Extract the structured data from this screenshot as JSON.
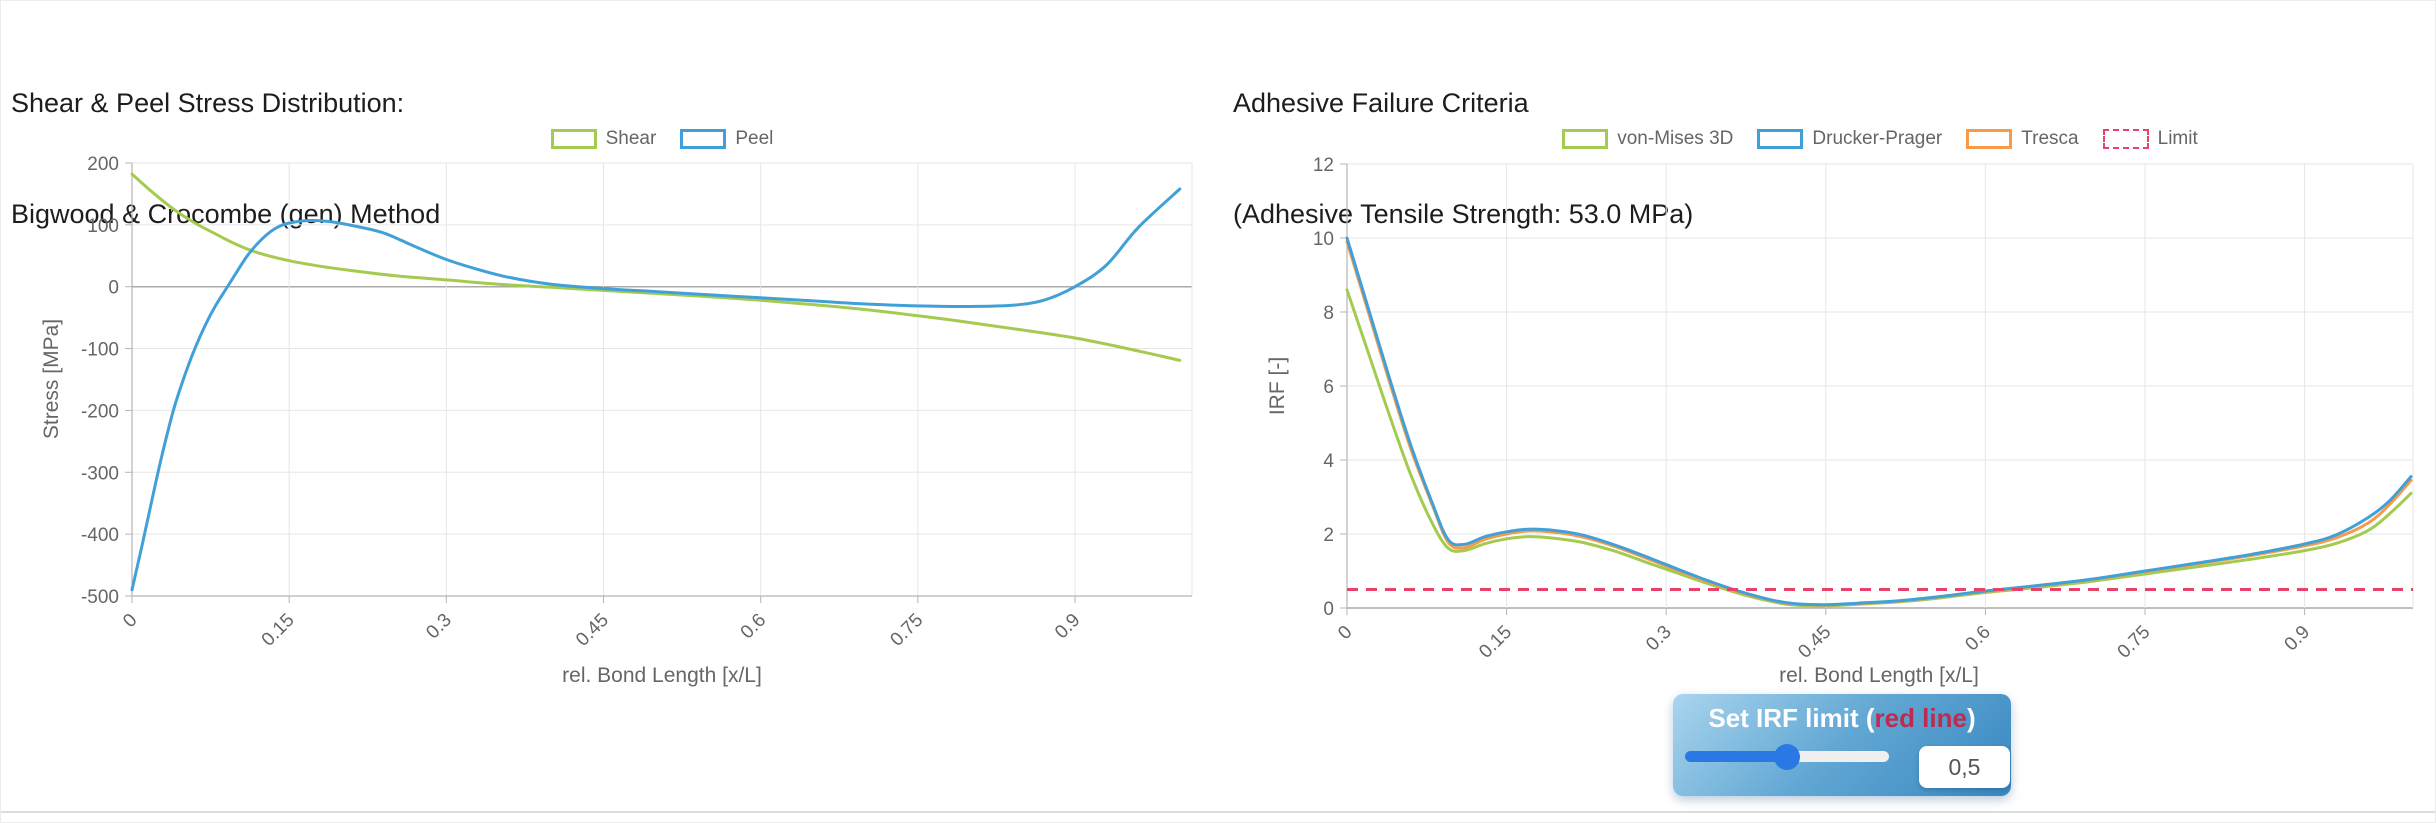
{
  "chart_data": [
    {
      "type": "line",
      "title_lines": [
        "Shear & Peel Stress Distribution:",
        "Bigwood & Crocombe (gen) Method"
      ],
      "xlabel": "rel. Bond Length [x/L]",
      "ylabel": "Stress [MPa]",
      "xlim": [
        0,
        1.01
      ],
      "ylim": [
        -500,
        200
      ],
      "xticks": [
        0,
        0.15,
        0.3,
        0.45,
        0.6,
        0.75,
        0.9
      ],
      "yticks": [
        200,
        100,
        0,
        -100,
        -200,
        -300,
        -400,
        -500
      ],
      "grid": true,
      "legend_position": "top",
      "series": [
        {
          "name": "Shear",
          "color": "#a4cb50",
          "x": [
            0,
            0.02,
            0.04,
            0.06,
            0.08,
            0.1,
            0.12,
            0.15,
            0.18,
            0.21,
            0.25,
            0.3,
            0.35,
            0.4,
            0.45,
            0.5,
            0.55,
            0.6,
            0.65,
            0.7,
            0.75,
            0.8,
            0.85,
            0.9,
            0.95,
            1.0
          ],
          "y": [
            182,
            152,
            125,
            103,
            85,
            68,
            55,
            42,
            33,
            26,
            18,
            11,
            4,
            -1,
            -6,
            -11,
            -16,
            -22,
            -29,
            -37,
            -47,
            -58,
            -70,
            -83,
            -100,
            -119
          ]
        },
        {
          "name": "Peel",
          "color": "#41a0d8",
          "x": [
            0,
            0.01,
            0.02,
            0.03,
            0.04,
            0.05,
            0.06,
            0.07,
            0.08,
            0.09,
            0.1,
            0.11,
            0.12,
            0.13,
            0.14,
            0.15,
            0.17,
            0.19,
            0.21,
            0.24,
            0.27,
            0.3,
            0.33,
            0.36,
            0.4,
            0.45,
            0.5,
            0.55,
            0.6,
            0.65,
            0.7,
            0.75,
            0.8,
            0.84,
            0.87,
            0.9,
            0.93,
            0.96,
            1.0
          ],
          "y": [
            -490,
            -415,
            -337,
            -263,
            -197,
            -145,
            -100,
            -62,
            -30,
            -3,
            24,
            50,
            70,
            86,
            97,
            103,
            107,
            105,
            99,
            87,
            65,
            44,
            28,
            15,
            4,
            -3,
            -8,
            -13,
            -18,
            -23,
            -28,
            -31,
            -32,
            -30,
            -22,
            0,
            35,
            95,
            158
          ]
        }
      ]
    },
    {
      "type": "line",
      "title_lines": [
        "Adhesive Failure Criteria",
        "(Adhesive Tensile Strength: 53.0 MPa)"
      ],
      "xlabel": "rel. Bond Length [x/L]",
      "ylabel": "IRF [-]",
      "xlim": [
        0,
        1.01
      ],
      "ylim": [
        0,
        12
      ],
      "xticks": [
        0,
        0.15,
        0.3,
        0.45,
        0.6,
        0.75,
        0.9
      ],
      "yticks": [
        12,
        10,
        8,
        6,
        4,
        2,
        0
      ],
      "grid": true,
      "legend_position": "top",
      "series": [
        {
          "name": "von-Mises 3D",
          "color": "#a4cb50",
          "x": [
            0,
            0.02,
            0.04,
            0.06,
            0.08,
            0.095,
            0.11,
            0.13,
            0.15,
            0.17,
            0.19,
            0.22,
            0.25,
            0.28,
            0.31,
            0.34,
            0.37,
            0.4,
            0.42,
            0.45,
            0.48,
            0.52,
            0.56,
            0.6,
            0.65,
            0.7,
            0.75,
            0.8,
            0.85,
            0.9,
            0.93,
            0.96,
            0.98,
            1.0
          ],
          "y": [
            8.6,
            6.9,
            5.2,
            3.6,
            2.3,
            1.62,
            1.55,
            1.74,
            1.87,
            1.93,
            1.9,
            1.78,
            1.55,
            1.25,
            0.95,
            0.65,
            0.38,
            0.17,
            0.08,
            0.06,
            0.1,
            0.17,
            0.28,
            0.42,
            0.56,
            0.72,
            0.92,
            1.12,
            1.32,
            1.55,
            1.75,
            2.1,
            2.55,
            3.1
          ]
        },
        {
          "name": "Tresca",
          "color": "#f79b48",
          "x": [
            0,
            0.02,
            0.04,
            0.06,
            0.08,
            0.095,
            0.11,
            0.13,
            0.15,
            0.17,
            0.19,
            0.22,
            0.25,
            0.28,
            0.31,
            0.34,
            0.37,
            0.4,
            0.42,
            0.45,
            0.48,
            0.52,
            0.56,
            0.6,
            0.65,
            0.7,
            0.75,
            0.8,
            0.85,
            0.9,
            0.93,
            0.96,
            0.98,
            1.0
          ],
          "y": [
            9.9,
            8.0,
            6.1,
            4.3,
            2.8,
            1.78,
            1.63,
            1.86,
            2.0,
            2.08,
            2.06,
            1.93,
            1.68,
            1.36,
            1.02,
            0.7,
            0.42,
            0.2,
            0.11,
            0.08,
            0.12,
            0.19,
            0.31,
            0.45,
            0.6,
            0.77,
            0.98,
            1.2,
            1.42,
            1.68,
            1.9,
            2.3,
            2.8,
            3.45
          ]
        },
        {
          "name": "Drucker-Prager",
          "color": "#41a0d8",
          "x": [
            0,
            0.02,
            0.04,
            0.06,
            0.08,
            0.095,
            0.11,
            0.13,
            0.15,
            0.17,
            0.19,
            0.22,
            0.25,
            0.28,
            0.31,
            0.34,
            0.37,
            0.4,
            0.42,
            0.45,
            0.48,
            0.52,
            0.56,
            0.6,
            0.65,
            0.7,
            0.75,
            0.8,
            0.85,
            0.9,
            0.93,
            0.96,
            0.98,
            1.0
          ],
          "y": [
            10.0,
            8.1,
            6.2,
            4.4,
            2.85,
            1.85,
            1.72,
            1.93,
            2.06,
            2.13,
            2.11,
            1.98,
            1.72,
            1.4,
            1.06,
            0.73,
            0.44,
            0.21,
            0.12,
            0.09,
            0.13,
            0.2,
            0.32,
            0.46,
            0.61,
            0.78,
            1.0,
            1.22,
            1.45,
            1.73,
            1.98,
            2.45,
            2.9,
            3.55
          ]
        },
        {
          "name": "Limit",
          "color": "#e8426a",
          "dashed": true,
          "const_y": 0.5
        }
      ],
      "legend_order": [
        "von-Mises 3D",
        "Drucker-Prager",
        "Tresca",
        "Limit"
      ]
    }
  ],
  "irf_control": {
    "label_prefix": "Set IRF limit (",
    "label_highlight": "red line",
    "label_suffix": ")",
    "value": "0,5",
    "slider_value": "50"
  }
}
